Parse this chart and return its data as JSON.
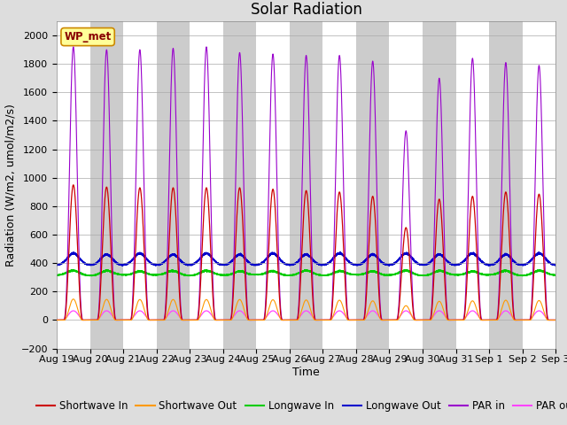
{
  "title": "Solar Radiation",
  "ylabel": "Radiation (W/m2, umol/m2/s)",
  "xlabel": "Time",
  "ylim": [
    -200,
    2100
  ],
  "yticks": [
    -200,
    0,
    200,
    400,
    600,
    800,
    1000,
    1200,
    1400,
    1600,
    1800,
    2000
  ],
  "num_days": 15,
  "annotation": "WP_met",
  "colors": {
    "shortwave_in": "#cc0000",
    "shortwave_out": "#ff9900",
    "longwave_in": "#00cc00",
    "longwave_out": "#0000cc",
    "par_in": "#9900cc",
    "par_out": "#ff44ff"
  },
  "labels": {
    "shortwave_in": "Shortwave In",
    "shortwave_out": "Shortwave Out",
    "longwave_in": "Longwave In",
    "longwave_out": "Longwave Out",
    "par_in": "PAR in",
    "par_out": "PAR out"
  },
  "xtick_labels": [
    "Aug 19",
    "Aug 20",
    "Aug 21",
    "Aug 22",
    "Aug 23",
    "Aug 24",
    "Aug 25",
    "Aug 26",
    "Aug 27",
    "Aug 28",
    "Aug 29",
    "Aug 30",
    "Aug 31",
    "Sep 1",
    "Sep 2",
    "Sep 3"
  ],
  "sw_peaks": [
    950,
    935,
    930,
    930,
    930,
    930,
    920,
    910,
    900,
    870,
    650,
    850,
    870,
    900,
    885
  ],
  "par_peaks": [
    1920,
    1900,
    1900,
    1910,
    1920,
    1880,
    1870,
    1860,
    1860,
    1820,
    1330,
    1700,
    1840,
    1810,
    1790
  ],
  "title_fontsize": 12,
  "label_fontsize": 9,
  "tick_fontsize": 8,
  "legend_fontsize": 8.5
}
